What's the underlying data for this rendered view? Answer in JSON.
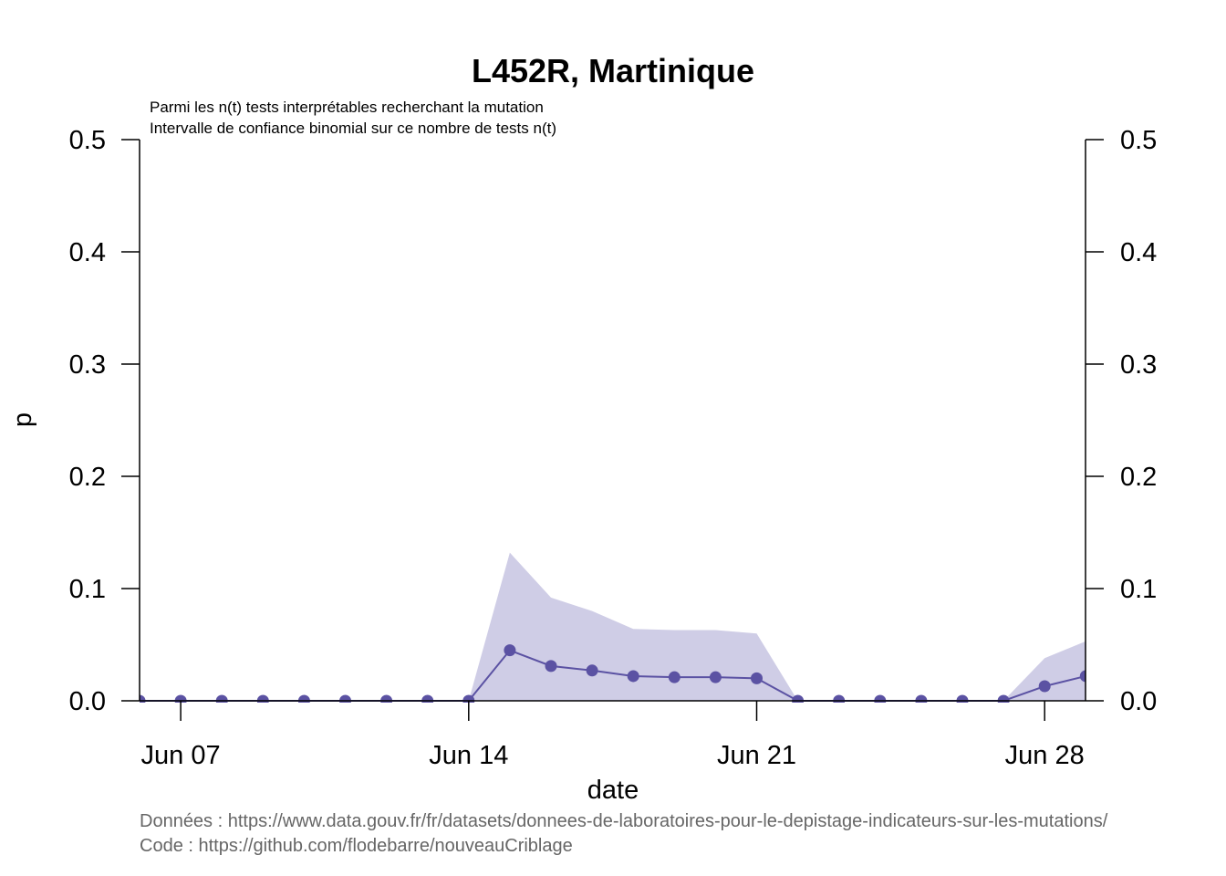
{
  "chart_data": {
    "type": "line",
    "title": "L452R, Martinique",
    "subtitle_lines": [
      "Parmi les n(t) tests interprétables recherchant la mutation",
      "Intervalle de confiance binomial sur ce nombre de tests n(t)"
    ],
    "xlabel": "date",
    "ylabel": "p",
    "x_tick_labels": [
      "Jun 07",
      "Jun 14",
      "Jun 21",
      "Jun 28"
    ],
    "y_tick_labels": [
      "0.0",
      "0.1",
      "0.2",
      "0.3",
      "0.4",
      "0.5"
    ],
    "ylim": [
      0,
      0.5
    ],
    "x": [
      "Jun 06",
      "Jun 07",
      "Jun 08",
      "Jun 09",
      "Jun 10",
      "Jun 11",
      "Jun 12",
      "Jun 13",
      "Jun 14",
      "Jun 15",
      "Jun 16",
      "Jun 17",
      "Jun 18",
      "Jun 19",
      "Jun 20",
      "Jun 21",
      "Jun 22",
      "Jun 23",
      "Jun 24",
      "Jun 25",
      "Jun 26",
      "Jun 27",
      "Jun 28",
      "Jun 29"
    ],
    "series": [
      {
        "values": [
          0,
          0,
          0,
          0,
          0,
          0,
          0,
          0,
          0,
          0.045,
          0.031,
          0.027,
          0.022,
          0.021,
          0.021,
          0.02,
          0,
          0,
          0,
          0,
          0,
          0,
          0.013,
          0.022
        ],
        "ci_low": [
          0,
          0,
          0,
          0,
          0,
          0,
          0,
          0,
          0,
          0,
          0,
          0,
          0,
          0,
          0,
          0,
          0,
          0,
          0,
          0,
          0,
          0,
          0,
          0
        ],
        "ci_high": [
          0,
          0,
          0,
          0,
          0,
          0,
          0,
          0,
          0,
          0.132,
          0.092,
          0.08,
          0.064,
          0.063,
          0.063,
          0.06,
          0,
          0,
          0,
          0,
          0,
          0,
          0.038,
          0.053
        ]
      }
    ],
    "colors": {
      "line": "#5b52a3",
      "band": "#cfcde6"
    },
    "footer": [
      "Données : https://www.data.gouv.fr/fr/datasets/donnees-de-laboratoires-pour-le-depistage-indicateurs-sur-les-mutations/",
      "Code : https://github.com/flodebarre/nouveauCriblage"
    ]
  }
}
